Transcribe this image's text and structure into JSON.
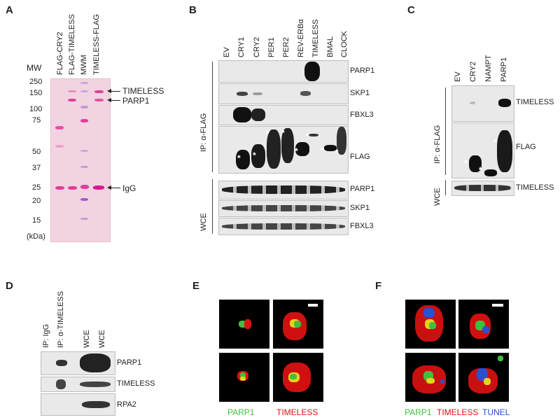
{
  "panels": {
    "A": "A",
    "B": "B",
    "C": "C",
    "D": "D",
    "E": "E",
    "F": "F"
  },
  "panelA": {
    "lanes": [
      "FLAG-CRY2",
      "FLAG-TIMELESS",
      "MWM",
      "TIMELESS-FLAG"
    ],
    "mw_title": "MW",
    "mw_ticks": [
      "250",
      "150",
      "100",
      "75",
      "50",
      "37",
      "25",
      "20",
      "15"
    ],
    "unit": "(kDa)",
    "annotations": [
      "TIMELESS",
      "PARP1",
      "IgG"
    ]
  },
  "panelB": {
    "lanes": [
      "EV",
      "CRY1",
      "CRY2",
      "PER1",
      "PER2",
      "REV-ERBα",
      "TIMELESS",
      "BMAL",
      "CLOCK"
    ],
    "ip_label": "IP: α-FLAG",
    "wce_label": "WCE",
    "ip_rows": [
      "PARP1",
      "SKP1",
      "FBXL3",
      "FLAG"
    ],
    "wce_rows": [
      "PARP1",
      "SKP1",
      "FBXL3"
    ]
  },
  "panelC": {
    "lanes": [
      "EV",
      "CRY2",
      "NAMPT",
      "PARP1"
    ],
    "ip_label": "IP: α-FLAG",
    "wce_label": "WCE",
    "rows": [
      "TIMELESS",
      "FLAG",
      "TIMELESS"
    ]
  },
  "panelD": {
    "lanes": [
      "IP: IgG",
      "IP: α-TIMELESS",
      "WCE",
      "WCE"
    ],
    "rows": [
      "PARP1",
      "TIMELESS",
      "RPA2"
    ]
  },
  "panelE": {
    "legend": [
      "PARP1",
      "TIMELESS"
    ]
  },
  "panelF": {
    "legend": [
      "PARP1",
      "TIMELESS",
      "TUNEL"
    ]
  },
  "colors": {
    "green": "#3fbf3f",
    "red": "#e01010",
    "blue": "#2a4fd0",
    "pink": "#e23d9a",
    "ponceau": "#f2d3e1"
  }
}
